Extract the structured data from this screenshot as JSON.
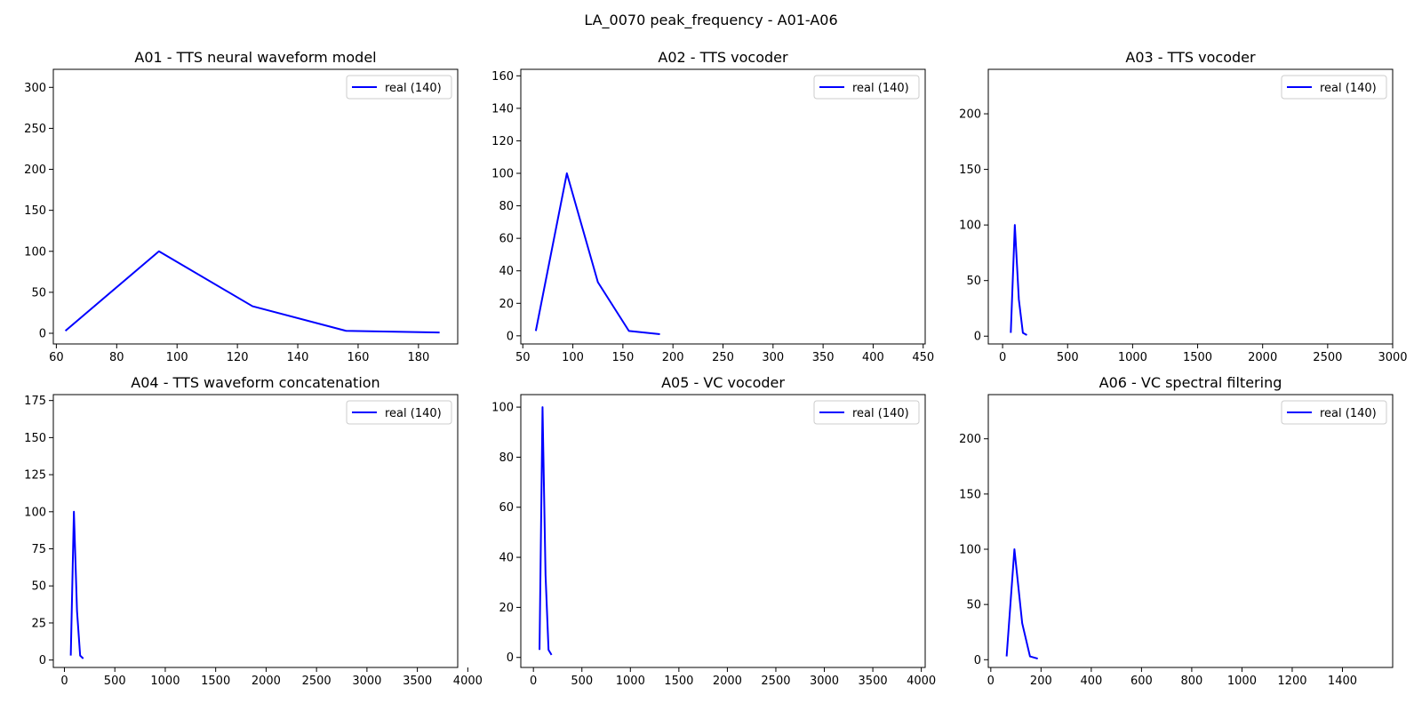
{
  "figure": {
    "suptitle": "LA_0070 peak_frequency - A01-A06"
  },
  "chart_data": [
    {
      "type": "line",
      "title": "A01 - TTS neural waveform model",
      "xlabel": "",
      "ylabel": "",
      "xlim": [
        59,
        193
      ],
      "ylim": [
        -13,
        322
      ],
      "xticks": [
        60,
        80,
        100,
        120,
        140,
        160,
        180
      ],
      "yticks": [
        0,
        50,
        100,
        150,
        200,
        250,
        300
      ],
      "grid": false,
      "legend": "top-right",
      "series": [
        {
          "name": "real (140)",
          "color": "#0000ff",
          "x": [
            63,
            94,
            125,
            156,
            187
          ],
          "y": [
            3,
            100,
            33,
            3,
            1
          ]
        }
      ]
    },
    {
      "type": "line",
      "title": "A02 - TTS vocoder",
      "xlabel": "",
      "ylabel": "",
      "xlim": [
        48,
        452
      ],
      "ylim": [
        -5,
        164
      ],
      "xticks": [
        50,
        100,
        150,
        200,
        250,
        300,
        350,
        400,
        450
      ],
      "yticks": [
        0,
        20,
        40,
        60,
        80,
        100,
        120,
        140,
        160
      ],
      "grid": false,
      "legend": "top-right",
      "series": [
        {
          "name": "real (140)",
          "color": "#0000ff",
          "x": [
            63,
            94,
            125,
            156,
            187
          ],
          "y": [
            3,
            100,
            33,
            3,
            1
          ]
        }
      ]
    },
    {
      "type": "line",
      "title": "A03 - TTS vocoder",
      "xlabel": "",
      "ylabel": "",
      "xlim": [
        -110,
        3000
      ],
      "ylim": [
        -7,
        240
      ],
      "xticks": [
        0,
        500,
        1000,
        1500,
        2000,
        2500,
        3000
      ],
      "yticks": [
        0,
        50,
        100,
        150,
        200
      ],
      "grid": false,
      "legend": "top-right",
      "series": [
        {
          "name": "real (140)",
          "color": "#0000ff",
          "x": [
            63,
            94,
            125,
            156,
            187
          ],
          "y": [
            3,
            100,
            33,
            3,
            1
          ]
        }
      ]
    },
    {
      "type": "line",
      "title": "A04 - TTS waveform concatenation",
      "xlabel": "",
      "ylabel": "",
      "xlim": [
        -110,
        3900
      ],
      "ylim": [
        -5,
        179
      ],
      "xticks": [
        0,
        500,
        1000,
        1500,
        2000,
        2500,
        3000,
        3500,
        4000
      ],
      "yticks": [
        0,
        25,
        50,
        75,
        100,
        125,
        150,
        175
      ],
      "grid": false,
      "legend": "top-right",
      "series": [
        {
          "name": "real (140)",
          "color": "#0000ff",
          "x": [
            63,
            94,
            125,
            156,
            187
          ],
          "y": [
            3,
            100,
            33,
            3,
            1
          ]
        }
      ]
    },
    {
      "type": "line",
      "title": "A05 - VC vocoder",
      "xlabel": "",
      "ylabel": "",
      "xlim": [
        -130,
        4040
      ],
      "ylim": [
        -4,
        105
      ],
      "xticks": [
        0,
        500,
        1000,
        1500,
        2000,
        2500,
        3000,
        3500,
        4000
      ],
      "yticks": [
        0,
        20,
        40,
        60,
        80,
        100
      ],
      "grid": false,
      "legend": "top-right",
      "series": [
        {
          "name": "real (140)",
          "color": "#0000ff",
          "x": [
            63,
            94,
            125,
            156,
            187
          ],
          "y": [
            3,
            100,
            33,
            3,
            1
          ]
        }
      ]
    },
    {
      "type": "line",
      "title": "A06 - VC spectral filtering",
      "xlabel": "",
      "ylabel": "",
      "xlim": [
        -10,
        1600
      ],
      "ylim": [
        -7,
        240
      ],
      "xticks": [
        0,
        200,
        400,
        600,
        800,
        1000,
        1200,
        1400
      ],
      "yticks": [
        0,
        50,
        100,
        150,
        200
      ],
      "grid": false,
      "legend": "top-right",
      "series": [
        {
          "name": "real (140)",
          "color": "#0000ff",
          "x": [
            63,
            94,
            125,
            156,
            187
          ],
          "y": [
            3,
            100,
            33,
            3,
            1
          ]
        }
      ]
    }
  ]
}
